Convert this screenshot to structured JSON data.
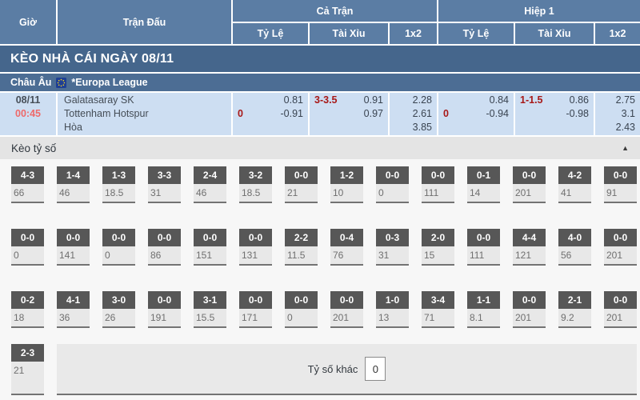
{
  "header": {
    "time": "Giờ",
    "match": "Trận Đấu",
    "full_match": "Cả Trận",
    "first_half": "Hiệp 1",
    "odds": "Tỷ Lệ",
    "over_under": "Tài Xỉu",
    "one_x_two": "1x2"
  },
  "banner": {
    "title": "KÈO NHÀ CÁI NGÀY 08/11"
  },
  "league": {
    "region": "Châu Âu",
    "name": "*Europa League"
  },
  "match": {
    "date": "08/11",
    "time": "00:45",
    "home_team": "Galatasaray SK",
    "away_team": "Tottenham Hotspur",
    "draw_label": "Hòa",
    "full": {
      "handicap_line": "0",
      "handicap_home": "0.81",
      "handicap_away": "-0.91",
      "ou_line": "3-3.5",
      "ou_over": "0.91",
      "ou_under": "0.97",
      "x12_home": "2.28",
      "x12_away": "2.61",
      "x12_draw": "3.85"
    },
    "half": {
      "handicap_line": "0",
      "handicap_home": "0.84",
      "handicap_away": "-0.94",
      "ou_line": "1-1.5",
      "ou_over": "0.86",
      "ou_under": "-0.98",
      "x12_home": "2.75",
      "x12_away": "3.1",
      "x12_draw": "2.43"
    }
  },
  "score_section": {
    "title": "Kèo tỷ số",
    "collapse_icon": "▲",
    "rows": [
      [
        {
          "score": "4-3",
          "value": "66"
        },
        {
          "score": "1-4",
          "value": "46"
        },
        {
          "score": "1-3",
          "value": "18.5"
        },
        {
          "score": "3-3",
          "value": "31"
        },
        {
          "score": "2-4",
          "value": "46"
        },
        {
          "score": "3-2",
          "value": "18.5"
        },
        {
          "score": "0-0",
          "value": "21"
        },
        {
          "score": "1-2",
          "value": "10"
        },
        {
          "score": "0-0",
          "value": "0"
        },
        {
          "score": "0-0",
          "value": "111"
        },
        {
          "score": "0-1",
          "value": "14"
        },
        {
          "score": "0-0",
          "value": "201"
        },
        {
          "score": "4-2",
          "value": "41"
        },
        {
          "score": "0-0",
          "value": "91"
        }
      ],
      [
        {
          "score": "0-0",
          "value": "0"
        },
        {
          "score": "0-0",
          "value": "141"
        },
        {
          "score": "0-0",
          "value": "0"
        },
        {
          "score": "0-0",
          "value": "86"
        },
        {
          "score": "0-0",
          "value": "151"
        },
        {
          "score": "0-0",
          "value": "131"
        },
        {
          "score": "2-2",
          "value": "11.5"
        },
        {
          "score": "0-4",
          "value": "76"
        },
        {
          "score": "0-3",
          "value": "31"
        },
        {
          "score": "2-0",
          "value": "15"
        },
        {
          "score": "0-0",
          "value": "111"
        },
        {
          "score": "4-4",
          "value": "121"
        },
        {
          "score": "4-0",
          "value": "56"
        },
        {
          "score": "0-0",
          "value": "201"
        }
      ],
      [
        {
          "score": "0-2",
          "value": "18"
        },
        {
          "score": "4-1",
          "value": "36"
        },
        {
          "score": "3-0",
          "value": "26"
        },
        {
          "score": "0-0",
          "value": "191"
        },
        {
          "score": "3-1",
          "value": "15.5"
        },
        {
          "score": "0-0",
          "value": "171"
        },
        {
          "score": "0-0",
          "value": "0"
        },
        {
          "score": "0-0",
          "value": "201"
        },
        {
          "score": "1-0",
          "value": "13"
        },
        {
          "score": "3-4",
          "value": "71"
        },
        {
          "score": "1-1",
          "value": "8.1"
        },
        {
          "score": "0-0",
          "value": "201"
        },
        {
          "score": "2-1",
          "value": "9.2"
        },
        {
          "score": "0-0",
          "value": "201"
        }
      ]
    ],
    "last_row": {
      "score": "2-3",
      "value": "21",
      "other_label": "Tỷ số khác",
      "other_value": "0"
    }
  },
  "colors": {
    "header_blue": "#5b7da4",
    "banner_blue": "#45668c",
    "league_blue": "#4c6d94",
    "row_blue": "#cddef2",
    "accent_red": "#a81817",
    "time_red": "#ee6a6a",
    "score_box_gray": "#575757"
  }
}
